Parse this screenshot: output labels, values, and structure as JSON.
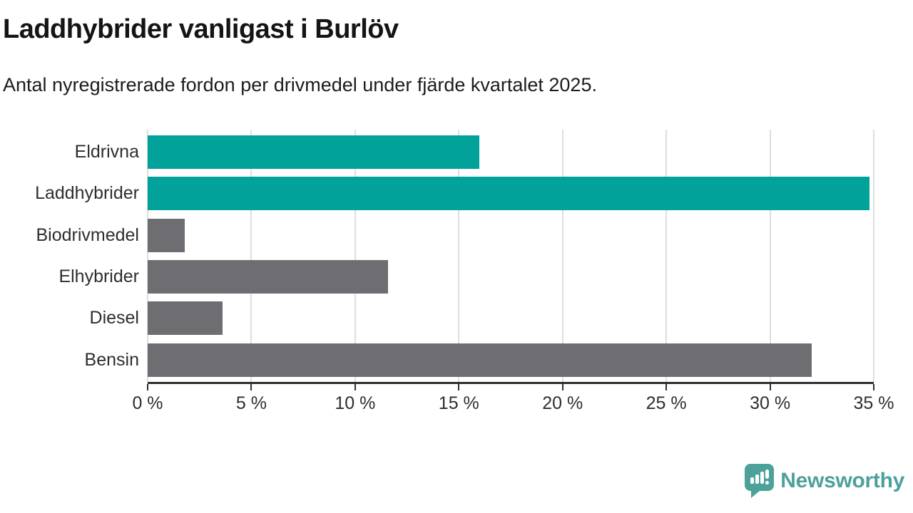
{
  "chart_data": {
    "type": "bar",
    "orientation": "horizontal",
    "title": "Laddhybrider vanligast i Burlöv",
    "subtitle": "Antal nyregistrerade fordon per drivmedel under fjärde kvartalet 2025.",
    "categories": [
      "Eldrivna",
      "Laddhybrider",
      "Biodrivmedel",
      "Elhybrider",
      "Diesel",
      "Bensin"
    ],
    "values": [
      16.0,
      34.8,
      1.8,
      11.6,
      3.6,
      32.0
    ],
    "unit": "%",
    "bar_colors": [
      "#00a29a",
      "#00a29a",
      "#6e6e72",
      "#6e6e72",
      "#6e6e72",
      "#6e6e72"
    ],
    "highlight_color": "#00a29a",
    "default_color": "#6e6e72",
    "xlim": [
      0,
      35
    ],
    "xticks": [
      0,
      5,
      10,
      15,
      20,
      25,
      30,
      35
    ],
    "xtick_labels": [
      "0 %",
      "5 %",
      "10 %",
      "15 %",
      "20 %",
      "25 %",
      "30 %",
      "35 %"
    ],
    "grid": "vertical",
    "legend": "none"
  },
  "logo": {
    "text": "Newsworthy",
    "icon": "bar-chart-speech-bubble-icon",
    "color": "#4da19b"
  }
}
